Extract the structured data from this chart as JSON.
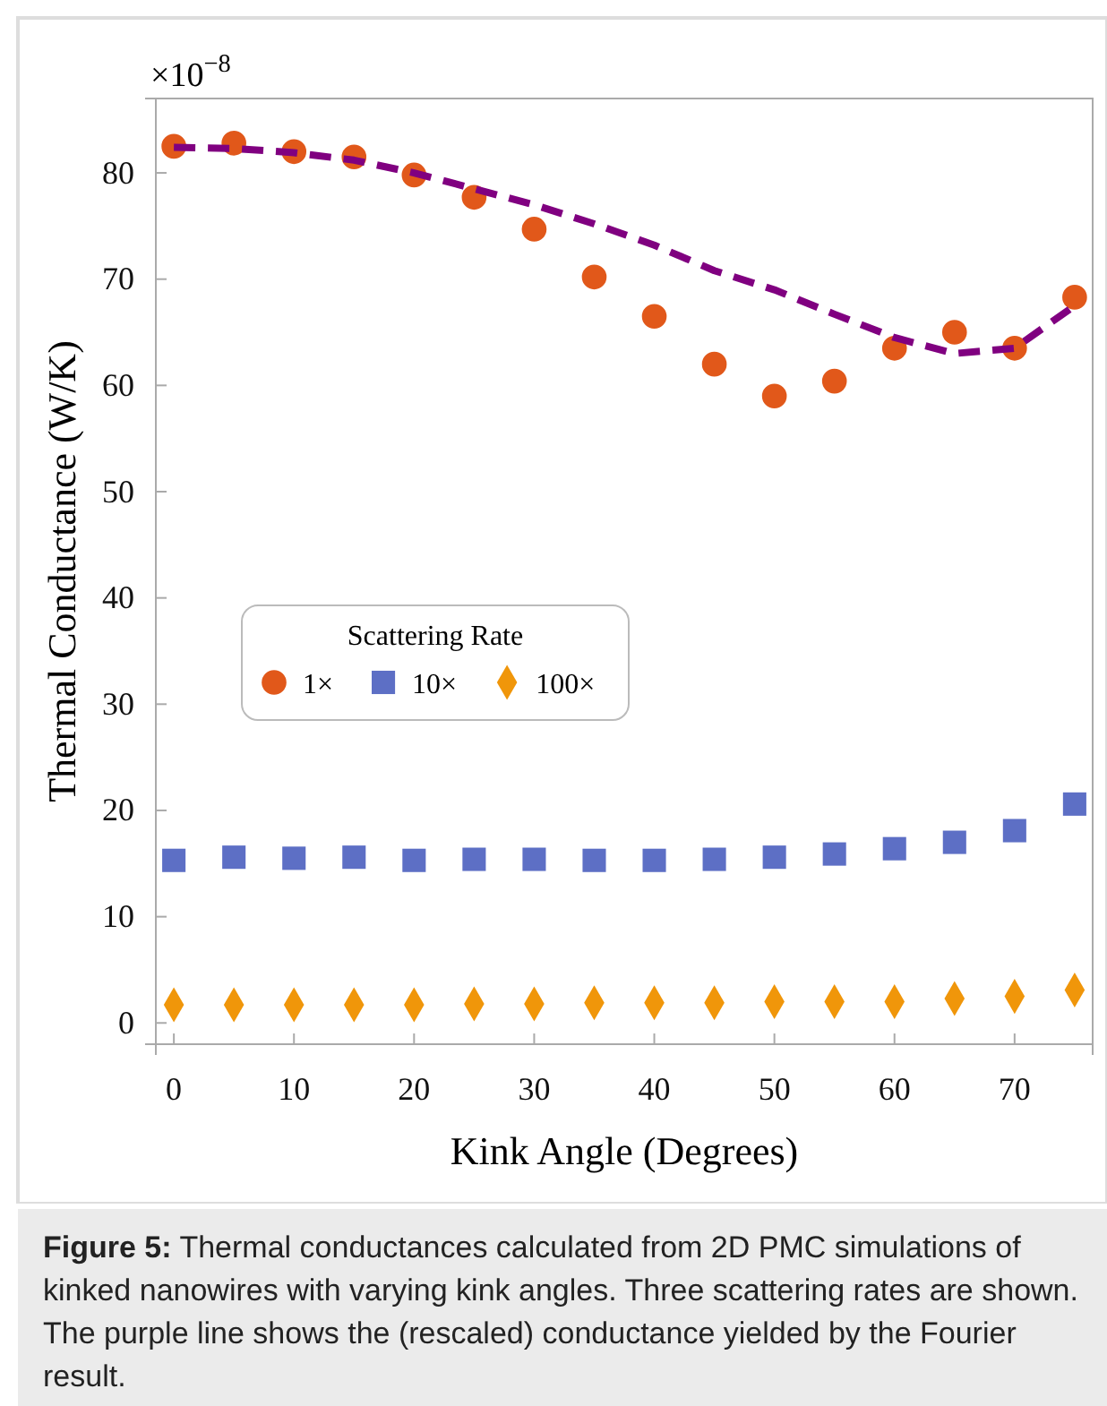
{
  "chart_data": {
    "type": "scatter",
    "xlabel": "Kink Angle (Degrees)",
    "ylabel": "Thermal Conductance (W/K)",
    "legend_title": "Scattering Rate",
    "legend": "center left",
    "x": [
      0,
      5,
      10,
      15,
      20,
      25,
      30,
      35,
      40,
      45,
      50,
      55,
      60,
      65,
      70,
      75
    ],
    "xlim": [
      -1.5,
      76.5
    ],
    "xticks": [
      0,
      10,
      20,
      30,
      40,
      50,
      60,
      70
    ],
    "ylim": [
      -2,
      87
    ],
    "yticks": [
      0,
      10,
      20,
      30,
      40,
      50,
      60,
      70,
      80
    ],
    "grid": false,
    "series": [
      {
        "name": "1×",
        "color": "#e1581a",
        "marker": "circle",
        "values": [
          82.5,
          82.8,
          82,
          81.5,
          79.8,
          77.7,
          74.7,
          70.2,
          66.5,
          62,
          59,
          60.4,
          63.5,
          65,
          63.5,
          68.3
        ]
      },
      {
        "name": "10×",
        "color": "#5d6fc5",
        "marker": "square",
        "values": [
          15.3,
          15.6,
          15.5,
          15.6,
          15.3,
          15.4,
          15.4,
          15.3,
          15.3,
          15.4,
          15.6,
          15.9,
          16.4,
          17,
          18.1,
          20.6
        ]
      },
      {
        "name": "100×",
        "color": "#f0960a",
        "marker": "diamond",
        "values": [
          1.7,
          1.7,
          1.7,
          1.7,
          1.7,
          1.8,
          1.8,
          1.9,
          1.9,
          1.9,
          2,
          2,
          2,
          2.3,
          2.5,
          3.1
        ]
      },
      {
        "type": "line",
        "color": "#800080",
        "marker": "none",
        "line_style": "dashed",
        "values": [
          82.4,
          82.3,
          81.9,
          81.2,
          80,
          78.5,
          77,
          75.2,
          73.2,
          70.8,
          69,
          66.7,
          64.5,
          63,
          63.5,
          67.5
        ]
      }
    ],
    "annotations": [
      "×10$^{−8}$",
      "Figure 5: Thermal conductances calculated from 2D PMC simulations of kinked nanowires with varying kink angles. Three scattering rates are shown. The purple line shows the (rescaled) conductance yielded by the Fourier result."
    ]
  }
}
